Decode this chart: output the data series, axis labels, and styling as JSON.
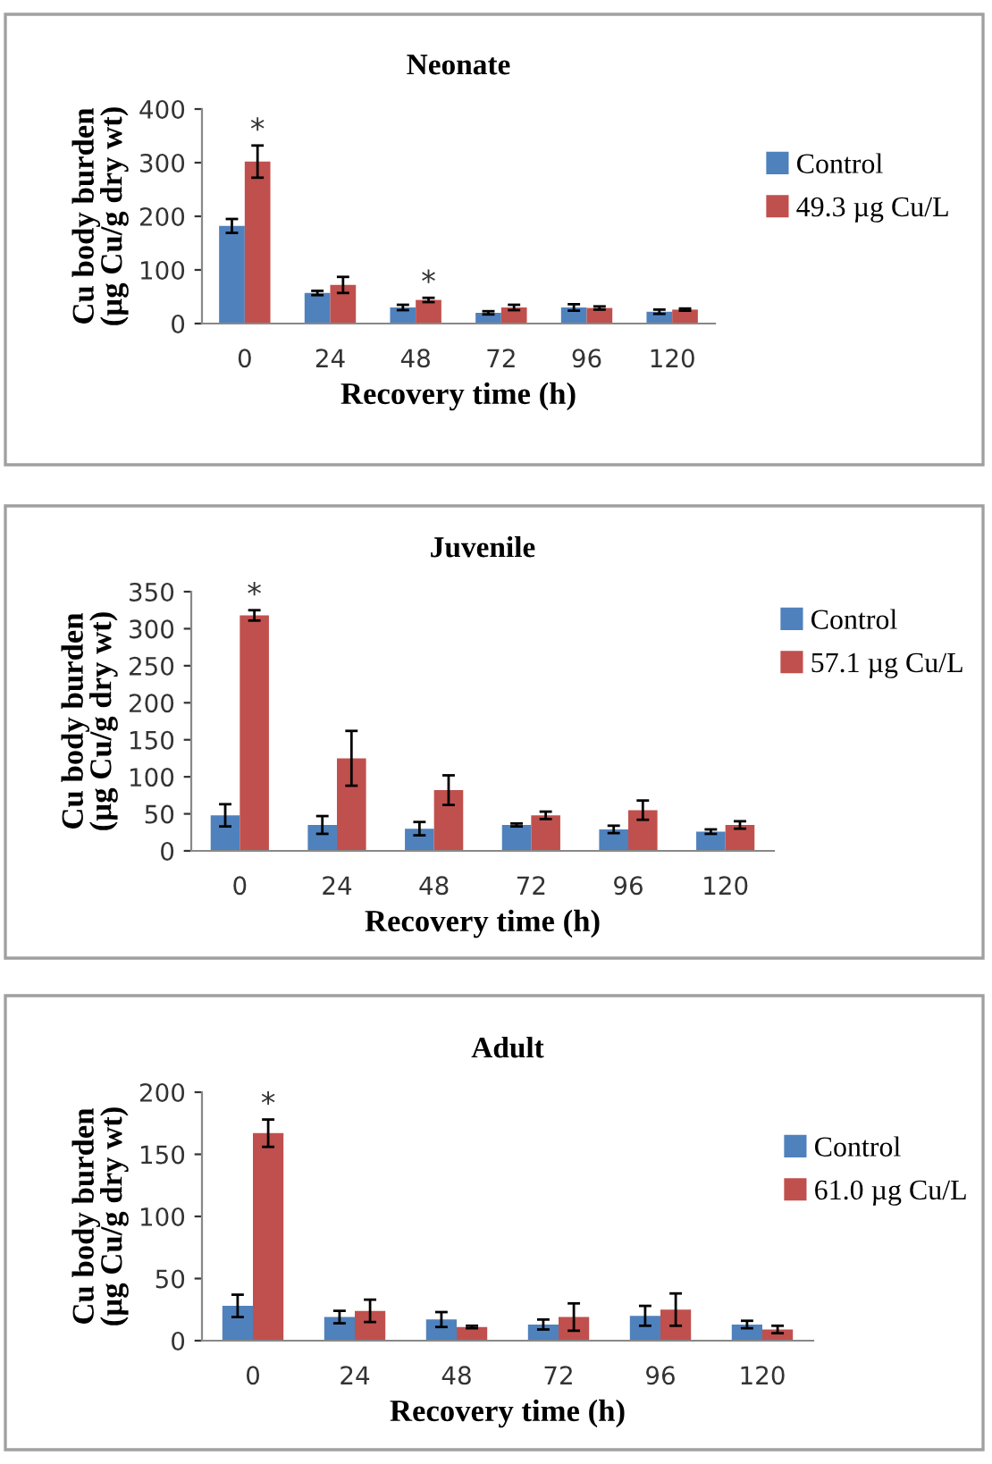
{
  "chart_data": [
    {
      "type": "bar",
      "title": "Neonate",
      "xlabel": "Recovery time (h)",
      "ylabel": "Cu body burden\n(µg Cu/g dry wt)",
      "categories": [
        "0",
        "24",
        "48",
        "72",
        "96",
        "120"
      ],
      "series": [
        {
          "name": "Control",
          "color": "#4f81bd",
          "values": [
            182,
            57,
            30,
            20,
            30,
            22
          ],
          "errors": [
            13,
            4,
            5,
            3,
            6,
            4
          ]
        },
        {
          "name": "49.3 µg Cu/L",
          "color": "#c0504d",
          "values": [
            302,
            72,
            44,
            30,
            29,
            26
          ],
          "errors": [
            30,
            15,
            4,
            5,
            3,
            2
          ]
        }
      ],
      "ylim": [
        0,
        400
      ],
      "yticks": [
        0,
        100,
        200,
        300,
        400
      ],
      "legend": "right",
      "grid": false,
      "annotations": [
        {
          "text": "*",
          "x": "0",
          "y": 302
        },
        {
          "text": "*",
          "x": "48",
          "y": 44
        }
      ]
    },
    {
      "type": "bar",
      "title": "Juvenile",
      "xlabel": "Recovery time (h)",
      "ylabel": "Cu body burden\n(µg Cu/g dry wt)",
      "categories": [
        "0",
        "24",
        "48",
        "72",
        "96",
        "120"
      ],
      "series": [
        {
          "name": "Control",
          "color": "#4f81bd",
          "values": [
            48,
            35,
            30,
            35,
            29,
            26
          ],
          "errors": [
            15,
            12,
            9,
            2,
            5,
            3
          ]
        },
        {
          "name": "57.1 µg Cu/L",
          "color": "#c0504d",
          "values": [
            318,
            125,
            82,
            48,
            55,
            35
          ],
          "errors": [
            7,
            37,
            20,
            5,
            13,
            5
          ]
        }
      ],
      "ylim": [
        0,
        350
      ],
      "yticks": [
        0,
        50,
        100,
        150,
        200,
        250,
        300,
        350
      ],
      "legend": "right",
      "grid": false,
      "annotations": [
        {
          "text": "*",
          "x": "0",
          "y": 318
        }
      ]
    },
    {
      "type": "bar",
      "title": "Adult",
      "xlabel": "Recovery time (h)",
      "ylabel": "Cu body burden\n(µg Cu/g dry wt)",
      "categories": [
        "0",
        "24",
        "48",
        "72",
        "96",
        "120"
      ],
      "series": [
        {
          "name": "Control",
          "color": "#4f81bd",
          "values": [
            28,
            19,
            17,
            13,
            20,
            13
          ],
          "errors": [
            9,
            5,
            6,
            4,
            8,
            3
          ]
        },
        {
          "name": "61.0 µg Cu/L",
          "color": "#c0504d",
          "values": [
            167,
            24,
            11,
            19,
            25,
            9
          ],
          "errors": [
            11,
            9,
            1,
            11,
            13,
            3
          ]
        }
      ],
      "ylim": [
        0,
        200
      ],
      "yticks": [
        0,
        50,
        100,
        150,
        200
      ],
      "legend": "right",
      "grid": false,
      "annotations": [
        {
          "text": "*",
          "x": "0",
          "y": 167
        }
      ]
    }
  ]
}
